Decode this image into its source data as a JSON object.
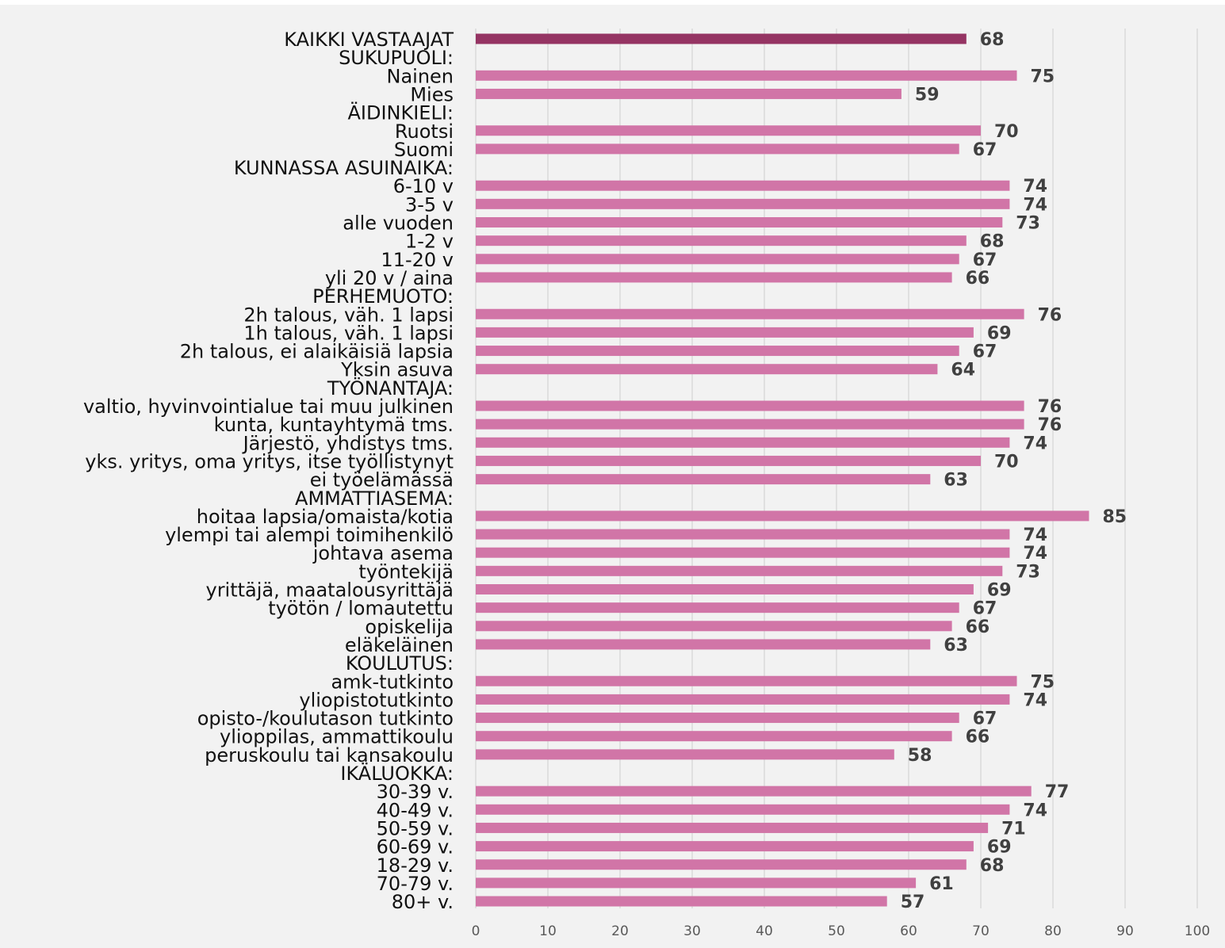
{
  "chart_data": {
    "type": "bar",
    "orientation": "horizontal",
    "title": "",
    "xlabel": "",
    "ylabel": "",
    "xlim": [
      0,
      100
    ],
    "ticks": [
      0,
      10,
      20,
      30,
      40,
      50,
      60,
      70,
      80,
      90,
      100
    ],
    "grid": true,
    "colors": {
      "highlight": "#953463",
      "bar": "#d175a7",
      "background": "#f2f2f2"
    },
    "categories": [
      "KAIKKI VASTAAJAT",
      "SUKUPUOLI:",
      "Nainen",
      "Mies",
      "ÄIDINKIELI:",
      "Ruotsi",
      "Suomi",
      "KUNNASSA ASUINAIKA:",
      "6-10 v",
      "3-5 v",
      "alle vuoden",
      "1-2 v",
      "11-20 v",
      "yli 20 v / aina",
      "PERHEMUOTO:",
      "2h talous, väh. 1 lapsi",
      "1h talous, väh. 1 lapsi",
      "2h talous, ei alaikäisiä lapsia",
      "Yksin asuva",
      "TYÖNANTAJA:",
      "valtio, hyvinvointialue tai muu julkinen",
      "kunta, kuntayhtymä tms.",
      "Järjestö, yhdistys tms.",
      "yks. yritys, oma yritys, itse työllistynyt",
      "ei työelämässä",
      "AMMATTIASEMA:",
      "hoitaa lapsia/omaista/kotia",
      "ylempi tai alempi toimihenkilö",
      "johtava asema",
      "työntekijä",
      "yrittäjä, maatalousyrittäjä",
      "työtön / lomautettu",
      "opiskelija",
      "eläkeläinen",
      "KOULUTUS:",
      "amk-tutkinto",
      "yliopistotutkinto",
      "opisto-/koulutason tutkinto",
      "ylioppilas, ammattikoulu",
      "peruskoulu tai kansakoulu",
      "IKÄLUOKKA:",
      "30-39 v.",
      "40-49 v.",
      "50-59 v.",
      "60-69 v.",
      "18-29 v.",
      "70-79  v.",
      "80+ v."
    ],
    "values": [
      68,
      null,
      75,
      59,
      null,
      70,
      67,
      null,
      74,
      74,
      73,
      68,
      67,
      66,
      null,
      76,
      69,
      67,
      64,
      null,
      76,
      76,
      74,
      70,
      63,
      null,
      85,
      74,
      74,
      73,
      69,
      67,
      66,
      63,
      null,
      75,
      74,
      67,
      66,
      58,
      null,
      77,
      74,
      71,
      69,
      68,
      61,
      57
    ],
    "highlight_index": 0
  }
}
